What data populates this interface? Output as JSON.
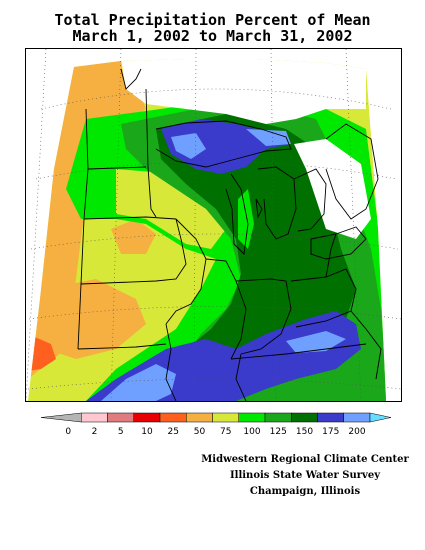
{
  "title": {
    "line1": "Total Precipitation Percent of Mean",
    "line2": "March 1, 2002 to March 31, 2002"
  },
  "legend": {
    "colors": [
      "#b4b4b4",
      "#ffc8d0",
      "#e07b80",
      "#e80000",
      "#ff6020",
      "#f5b041",
      "#d8e838",
      "#00e800",
      "#1aa81a",
      "#007000",
      "#3a3acb",
      "#6fa0ff",
      "#66ddff"
    ],
    "labels": [
      "0",
      "2",
      "5",
      "10",
      "25",
      "50",
      "75",
      "100",
      "125",
      "150",
      "175",
      "200"
    ]
  },
  "credits": {
    "line1": "Midwestern Regional Climate Center",
    "line2": "Illinois State Water Survey",
    "line3": "Champaign, Illinois"
  },
  "map_regions": [
    {
      "name": "region-west-orange",
      "color": "#f5b041",
      "level": "25-50"
    },
    {
      "name": "region-west-yellow",
      "color": "#d8e838",
      "level": "50-75"
    },
    {
      "name": "region-central-lightgreen",
      "color": "#00e800",
      "level": "75-100"
    },
    {
      "name": "region-midgreen",
      "color": "#1aa81a",
      "level": "100-125"
    },
    {
      "name": "region-darkgreen",
      "color": "#007000",
      "level": "125-150"
    },
    {
      "name": "region-blue",
      "color": "#3a3acb",
      "level": "150-175"
    },
    {
      "name": "region-lightblue",
      "color": "#6fa0ff",
      "level": "175-200"
    },
    {
      "name": "region-red",
      "color": "#ff6020",
      "level": "10-25"
    }
  ]
}
